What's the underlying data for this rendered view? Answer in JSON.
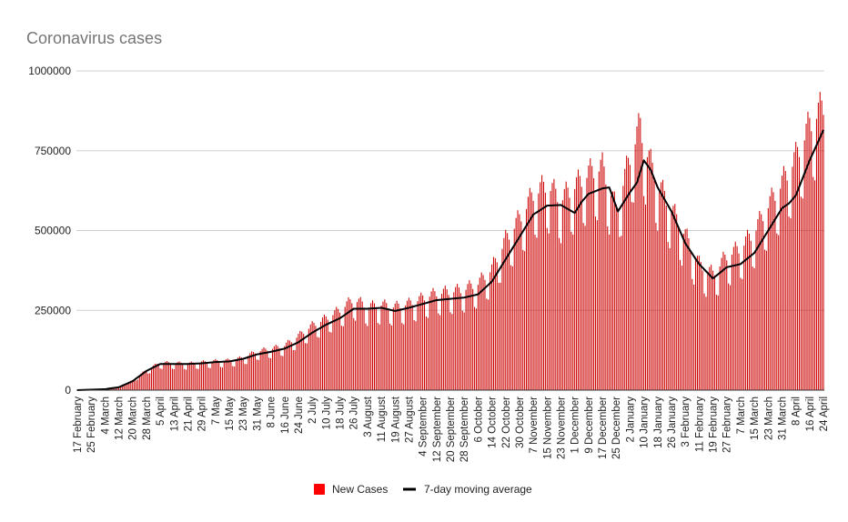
{
  "chart_data": {
    "type": "bar",
    "title": "Coronavirus cases",
    "xlabel": "",
    "ylabel": "",
    "ylim": [
      0,
      1000000
    ],
    "yticks": [
      0,
      250000,
      500000,
      750000,
      1000000
    ],
    "ytick_labels": [
      "0",
      "250000",
      "500000",
      "750000",
      "1000000"
    ],
    "grid": true,
    "legend_position": "bottom",
    "colors": {
      "bars": "#cc0000",
      "legend_bar": "#ff0000",
      "line": "#000000",
      "grid": "#d0d0d0",
      "title": "#757575"
    },
    "x_start": "2020-02-17",
    "x_end": "2021-04-24",
    "x_tick_step_days": 8,
    "x_tick_labels": [
      "17 February",
      "25 February",
      "4 March",
      "12 March",
      "20 March",
      "28 March",
      "5 April",
      "13 April",
      "21 April",
      "29 April",
      "7 May",
      "15 May",
      "23 May",
      "31 May",
      "8 June",
      "16 June",
      "24 June",
      "2 July",
      "10 July",
      "18 July",
      "26 July",
      "3 August",
      "11 August",
      "19 August",
      "27 August",
      "4 September",
      "12 September",
      "20 September",
      "28 September",
      "6 October",
      "14 October",
      "22 October",
      "30 October",
      "7 November",
      "15 November",
      "23 November",
      "1 December",
      "9 December",
      "17 December",
      "25 December",
      "2 January",
      "10 January",
      "18 January",
      "26 January",
      "3 February",
      "11 February",
      "19 February",
      "27 February",
      "7 March",
      "15 March",
      "23 March",
      "31 March",
      "8 April",
      "16 April",
      "24 April"
    ],
    "series": [
      {
        "name": "New Cases",
        "type": "bar",
        "x": [
          "2020-02-17",
          "2020-02-25",
          "2020-03-04",
          "2020-03-12",
          "2020-03-20",
          "2020-03-28",
          "2020-04-05",
          "2020-04-13",
          "2020-04-21",
          "2020-04-29",
          "2020-05-07",
          "2020-05-15",
          "2020-05-23",
          "2020-05-31",
          "2020-06-08",
          "2020-06-16",
          "2020-06-24",
          "2020-07-02",
          "2020-07-10",
          "2020-07-18",
          "2020-07-26",
          "2020-08-03",
          "2020-08-11",
          "2020-08-19",
          "2020-08-27",
          "2020-09-04",
          "2020-09-12",
          "2020-09-20",
          "2020-09-28",
          "2020-10-06",
          "2020-10-14",
          "2020-10-22",
          "2020-10-30",
          "2020-11-07",
          "2020-11-15",
          "2020-11-23",
          "2020-12-01",
          "2020-12-09",
          "2020-12-17",
          "2020-12-25",
          "2021-01-02",
          "2021-01-08",
          "2021-01-10",
          "2021-01-18",
          "2021-01-26",
          "2021-02-03",
          "2021-02-11",
          "2021-02-19",
          "2021-02-27",
          "2021-03-07",
          "2021-03-15",
          "2021-03-23",
          "2021-03-31",
          "2021-04-08",
          "2021-04-16",
          "2021-04-24"
        ],
        "y": [
          1000,
          2000,
          3000,
          10000,
          30000,
          62000,
          85000,
          84000,
          82000,
          86000,
          90000,
          92000,
          100000,
          120000,
          128000,
          138000,
          168000,
          200000,
          222000,
          248000,
          282000,
          258000,
          265000,
          258000,
          268000,
          285000,
          300000,
          305000,
          312000,
          330000,
          375000,
          465000,
          530000,
          605000,
          635000,
          590000,
          630000,
          670000,
          690000,
          560000,
          720000,
          820000,
          760000,
          640000,
          560000,
          480000,
          390000,
          360000,
          415000,
          440000,
          490000,
          570000,
          640000,
          720000,
          820000,
          880000
        ]
      },
      {
        "name": "7-day moving average",
        "type": "line",
        "x": [
          "2020-02-17",
          "2020-02-25",
          "2020-03-04",
          "2020-03-12",
          "2020-03-20",
          "2020-03-28",
          "2020-04-05",
          "2020-04-13",
          "2020-04-21",
          "2020-04-29",
          "2020-05-07",
          "2020-05-15",
          "2020-05-23",
          "2020-05-31",
          "2020-06-08",
          "2020-06-16",
          "2020-06-24",
          "2020-07-02",
          "2020-07-10",
          "2020-07-18",
          "2020-07-26",
          "2020-08-03",
          "2020-08-11",
          "2020-08-19",
          "2020-08-27",
          "2020-09-04",
          "2020-09-12",
          "2020-09-20",
          "2020-09-28",
          "2020-10-06",
          "2020-10-14",
          "2020-10-22",
          "2020-10-30",
          "2020-11-07",
          "2020-11-15",
          "2020-11-23",
          "2020-12-01",
          "2020-12-05",
          "2020-12-09",
          "2020-12-17",
          "2020-12-21",
          "2020-12-26",
          "2021-01-02",
          "2021-01-06",
          "2021-01-10",
          "2021-01-14",
          "2021-01-18",
          "2021-01-26",
          "2021-02-03",
          "2021-02-11",
          "2021-02-19",
          "2021-02-27",
          "2021-03-07",
          "2021-03-15",
          "2021-03-23",
          "2021-03-31",
          "2021-04-04",
          "2021-04-08",
          "2021-04-16",
          "2021-04-24"
        ],
        "y": [
          0,
          1500,
          3000,
          9000,
          28000,
          60000,
          82000,
          82000,
          82000,
          84000,
          88000,
          90000,
          98000,
          112000,
          120000,
          130000,
          150000,
          180000,
          205000,
          225000,
          255000,
          255000,
          258000,
          248000,
          258000,
          270000,
          282000,
          286000,
          290000,
          300000,
          340000,
          410000,
          480000,
          550000,
          578000,
          580000,
          555000,
          590000,
          615000,
          632000,
          635000,
          560000,
          620000,
          650000,
          720000,
          690000,
          635000,
          560000,
          460000,
          395000,
          350000,
          385000,
          395000,
          430000,
          500000,
          570000,
          585000,
          610000,
          720000,
          815000
        ]
      }
    ]
  }
}
